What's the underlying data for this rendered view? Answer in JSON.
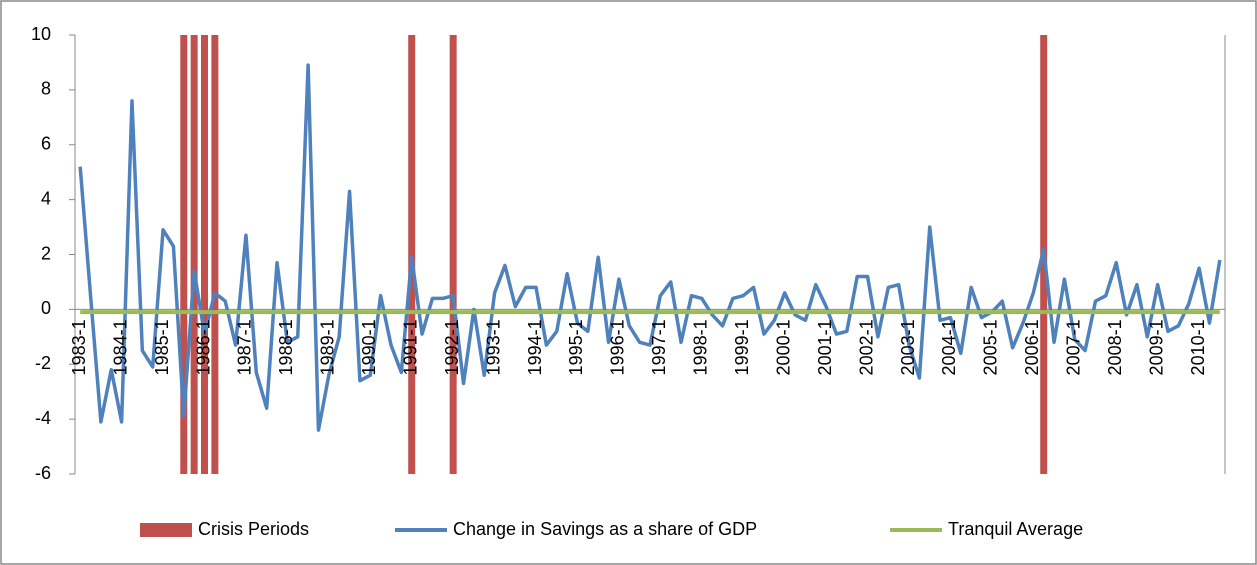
{
  "chart_data": {
    "type": "line",
    "categories": [
      "1983-1",
      null,
      null,
      null,
      "1984-1",
      null,
      null,
      null,
      "1985-1",
      null,
      null,
      null,
      "1986-1",
      null,
      null,
      null,
      "1987-1",
      null,
      null,
      null,
      "1988-1",
      null,
      null,
      null,
      "1989-1",
      null,
      null,
      null,
      "1990-1",
      null,
      null,
      null,
      "1991-1",
      null,
      null,
      null,
      "1992-1",
      null,
      null,
      null,
      "1993-1",
      null,
      null,
      null,
      "1994-1",
      null,
      null,
      null,
      "1995-1",
      null,
      null,
      null,
      "1996-1",
      null,
      null,
      null,
      "1997-1",
      null,
      null,
      null,
      "1998-1",
      null,
      null,
      null,
      "1999-1",
      null,
      null,
      null,
      "2000-1",
      null,
      null,
      null,
      "2001-1",
      null,
      null,
      null,
      "2002-1",
      null,
      null,
      null,
      "2003-1",
      null,
      null,
      null,
      "2004-1",
      null,
      null,
      null,
      "2005-1",
      null,
      null,
      null,
      "2006-1",
      null,
      null,
      null,
      "2007-1",
      null,
      null,
      null,
      "2008-1",
      null,
      null,
      null,
      "2009-1",
      null,
      null,
      null,
      "2010-1",
      null,
      null
    ],
    "series": [
      {
        "name": "Crisis Periods",
        "type": "bar",
        "color": "#c0504d",
        "values": [
          null,
          null,
          null,
          null,
          null,
          null,
          null,
          null,
          null,
          null,
          10,
          10,
          10,
          10,
          null,
          null,
          null,
          null,
          null,
          null,
          null,
          null,
          null,
          null,
          null,
          null,
          null,
          null,
          null,
          null,
          null,
          null,
          10,
          null,
          null,
          null,
          10,
          null,
          null,
          null,
          null,
          null,
          null,
          null,
          null,
          null,
          null,
          null,
          null,
          null,
          null,
          null,
          null,
          null,
          null,
          null,
          null,
          null,
          null,
          null,
          null,
          null,
          null,
          null,
          null,
          null,
          null,
          null,
          null,
          null,
          null,
          null,
          null,
          null,
          null,
          null,
          null,
          null,
          null,
          null,
          null,
          null,
          null,
          null,
          null,
          null,
          null,
          null,
          null,
          null,
          null,
          null,
          null,
          10,
          null,
          null,
          null,
          null,
          null,
          null,
          null,
          null,
          null,
          null,
          null,
          null,
          null,
          null,
          null,
          null,
          null
        ]
      },
      {
        "name": "Change in Savings as a share of GDP",
        "type": "line",
        "color": "#4f81bd",
        "values": [
          5.2,
          0.5,
          -4.1,
          -2.2,
          -4.1,
          7.6,
          -1.5,
          -2.1,
          2.9,
          2.3,
          -3.9,
          1.4,
          -0.9,
          0.6,
          0.3,
          -1.3,
          2.7,
          -2.3,
          -3.6,
          1.7,
          -1.2,
          -1.0,
          8.9,
          -4.4,
          -2.4,
          -1.0,
          4.3,
          -2.6,
          -2.4,
          0.5,
          -1.3,
          -2.3,
          1.9,
          -0.9,
          0.4,
          0.4,
          0.5,
          -2.7,
          0.0,
          -2.4,
          0.6,
          1.6,
          0.1,
          0.8,
          0.8,
          -1.3,
          -0.8,
          1.3,
          -0.5,
          -0.8,
          1.9,
          -1.2,
          1.1,
          -0.6,
          -1.2,
          -1.3,
          0.5,
          1.0,
          -1.2,
          0.5,
          0.4,
          -0.2,
          -0.6,
          0.4,
          0.5,
          0.8,
          -0.9,
          -0.4,
          0.6,
          -0.2,
          -0.4,
          0.9,
          0.1,
          -0.9,
          -0.8,
          1.2,
          1.2,
          -1.0,
          0.8,
          0.9,
          -1.3,
          -2.5,
          3.0,
          -0.4,
          -0.3,
          -1.6,
          0.8,
          -0.3,
          -0.1,
          0.3,
          -1.4,
          -0.5,
          0.6,
          2.2,
          -1.2,
          1.1,
          -1.1,
          -1.5,
          0.3,
          0.5,
          1.7,
          -0.2,
          0.9,
          -1.0,
          0.9,
          -0.8,
          -0.6,
          0.2,
          1.5,
          -0.5,
          1.8
        ]
      },
      {
        "name": "Tranquil Average",
        "type": "line",
        "color": "#9bbb59",
        "values": [
          -0.1,
          -0.1,
          -0.1,
          -0.1,
          -0.1,
          -0.1,
          -0.1,
          -0.1,
          -0.1,
          -0.1,
          -0.1,
          -0.1,
          -0.1,
          -0.1,
          -0.1,
          -0.1,
          -0.1,
          -0.1,
          -0.1,
          -0.1,
          -0.1,
          -0.1,
          -0.1,
          -0.1,
          -0.1,
          -0.1,
          -0.1,
          -0.1,
          -0.1,
          -0.1,
          -0.1,
          -0.1,
          -0.1,
          -0.1,
          -0.1,
          -0.1,
          -0.1,
          -0.1,
          -0.1,
          -0.1,
          -0.1,
          -0.1,
          -0.1,
          -0.1,
          -0.1,
          -0.1,
          -0.1,
          -0.1,
          -0.1,
          -0.1,
          -0.1,
          -0.1,
          -0.1,
          -0.1,
          -0.1,
          -0.1,
          -0.1,
          -0.1,
          -0.1,
          -0.1,
          -0.1,
          -0.1,
          -0.1,
          -0.1,
          -0.1,
          -0.1,
          -0.1,
          -0.1,
          -0.1,
          -0.1,
          -0.1,
          -0.1,
          -0.1,
          -0.1,
          -0.1,
          -0.1,
          -0.1,
          -0.1,
          -0.1,
          -0.1,
          -0.1,
          -0.1,
          -0.1,
          -0.1,
          -0.1,
          -0.1,
          -0.1,
          -0.1,
          -0.1,
          -0.1,
          -0.1,
          -0.1,
          -0.1,
          -0.1,
          -0.1,
          -0.1,
          -0.1,
          -0.1,
          -0.1,
          -0.1,
          -0.1,
          -0.1,
          -0.1,
          -0.1,
          -0.1,
          -0.1,
          -0.1,
          -0.1,
          -0.1,
          -0.1,
          -0.1
        ]
      }
    ],
    "ylim": [
      -6,
      10
    ],
    "yticks": [
      -6,
      -4,
      -2,
      0,
      2,
      4,
      6,
      8,
      10
    ],
    "legend": "bottom"
  }
}
